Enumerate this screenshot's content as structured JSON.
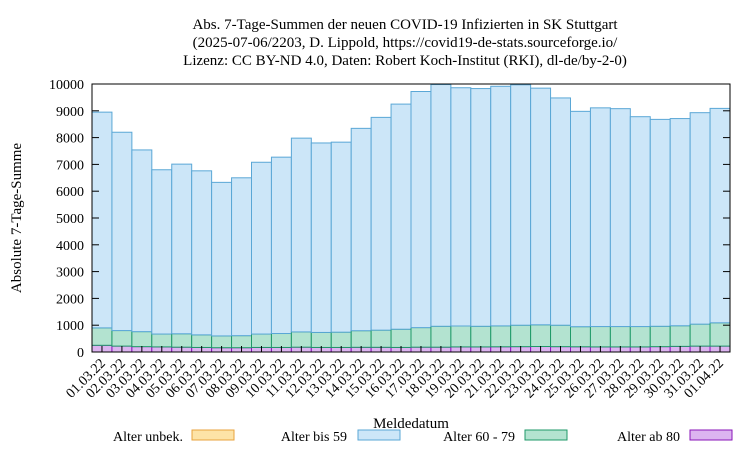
{
  "chart_data": {
    "type": "bar",
    "stacked": true,
    "title_lines": [
      "Abs. 7-Tage-Summen der neuen COVID-19 Infizierten in SK Stuttgart",
      "(2025-07-06/2203, D. Lippold, https://covid19-de-stats.sourceforge.io/",
      "Lizenz: CC BY-ND 4.0, Daten: Robert Koch-Institut (RKI), dl-de/by-2-0)"
    ],
    "xlabel": "Meldedatum",
    "ylabel": "Absolute 7-Tage-Summe",
    "ylim": [
      0,
      10000
    ],
    "yticks": [
      0,
      1000,
      2000,
      3000,
      4000,
      5000,
      6000,
      7000,
      8000,
      9000,
      10000
    ],
    "categories": [
      "01.03.22",
      "02.03.22",
      "03.03.22",
      "04.03.22",
      "05.03.22",
      "06.03.22",
      "07.03.22",
      "08.03.22",
      "09.03.22",
      "10.03.22",
      "11.03.22",
      "12.03.22",
      "13.03.22",
      "14.03.22",
      "15.03.22",
      "16.03.22",
      "17.03.22",
      "18.03.22",
      "19.03.22",
      "20.03.22",
      "21.03.22",
      "22.03.22",
      "23.03.22",
      "24.03.22",
      "25.03.22",
      "26.03.22",
      "27.03.22",
      "28.03.22",
      "29.03.22",
      "30.03.22",
      "31.03.22",
      "01.04.22"
    ],
    "series": [
      {
        "name": "Alter unbek.",
        "fill": "#fde3a7",
        "stroke": "#e8a33d",
        "values": [
          0,
          0,
          0,
          0,
          0,
          0,
          0,
          0,
          0,
          0,
          0,
          0,
          0,
          0,
          0,
          0,
          0,
          0,
          0,
          0,
          0,
          0,
          0,
          0,
          0,
          0,
          0,
          0,
          0,
          0,
          0,
          0
        ]
      },
      {
        "name": "Alter ab 80",
        "fill": "#dcb4f0",
        "stroke": "#8a16b8",
        "values": [
          250,
          220,
          200,
          190,
          180,
          170,
          160,
          160,
          170,
          170,
          180,
          170,
          170,
          175,
          175,
          170,
          180,
          180,
          190,
          190,
          195,
          200,
          205,
          200,
          195,
          190,
          190,
          190,
          200,
          210,
          220,
          220
        ]
      },
      {
        "name": "Alter 60 - 79",
        "fill": "#b3e3d0",
        "stroke": "#1f9a68",
        "values": [
          650,
          580,
          560,
          480,
          500,
          470,
          440,
          450,
          500,
          520,
          570,
          560,
          570,
          620,
          640,
          680,
          730,
          780,
          780,
          770,
          780,
          800,
          810,
          800,
          750,
          760,
          760,
          760,
          760,
          770,
          820,
          870
        ]
      },
      {
        "name": "Alter bis 59",
        "fill": "#cce6f8",
        "stroke": "#5aa7d6",
        "values": [
          8050,
          7400,
          6780,
          6130,
          6330,
          6120,
          5730,
          5890,
          6410,
          6580,
          7230,
          7070,
          7090,
          7550,
          7940,
          8400,
          8810,
          9020,
          8890,
          8870,
          8940,
          8970,
          8830,
          8480,
          8035,
          8160,
          8130,
          7830,
          7720,
          7730,
          7890,
          8000
        ]
      }
    ],
    "legend": {
      "placement": "bottom",
      "order": [
        "Alter unbek.",
        "Alter bis 59",
        "Alter 60 - 79",
        "Alter ab 80"
      ]
    },
    "grid": false
  }
}
